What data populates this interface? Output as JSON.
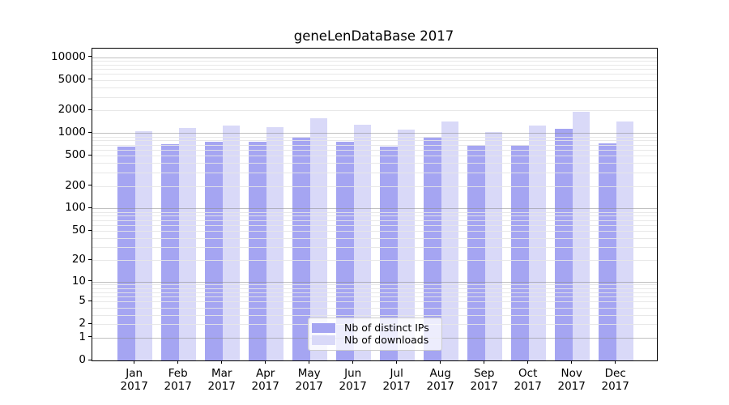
{
  "chart_data": {
    "type": "bar",
    "title": "geneLenDataBase 2017",
    "categories": [
      "Jan",
      "Feb",
      "Mar",
      "Apr",
      "May",
      "Jun",
      "Jul",
      "Aug",
      "Sep",
      "Oct",
      "Nov",
      "Dec"
    ],
    "category_year": "2017",
    "series": [
      {
        "name": "Nb of distinct IPs",
        "color": "#a5a5f2",
        "values": [
          663,
          720,
          763,
          763,
          897,
          763,
          665,
          897,
          703,
          703,
          1130,
          738
        ]
      },
      {
        "name": "Nb of downloads",
        "color": "#d9d9f8",
        "values": [
          1052,
          1180,
          1250,
          1210,
          1572,
          1300,
          1115,
          1425,
          1042,
          1250,
          1930,
          1425
        ]
      }
    ],
    "yscale": "log1p",
    "ylim": [
      0,
      13000
    ],
    "yticks": [
      10000,
      5000,
      2000,
      1000,
      500,
      200,
      100,
      50,
      20,
      10,
      5,
      2,
      1,
      0
    ],
    "major_gridline_values": [
      1,
      10,
      100,
      1000,
      10000
    ],
    "grid": "horizontal",
    "legend_position": "lower-center-inside",
    "xlabel": "",
    "ylabel": ""
  }
}
